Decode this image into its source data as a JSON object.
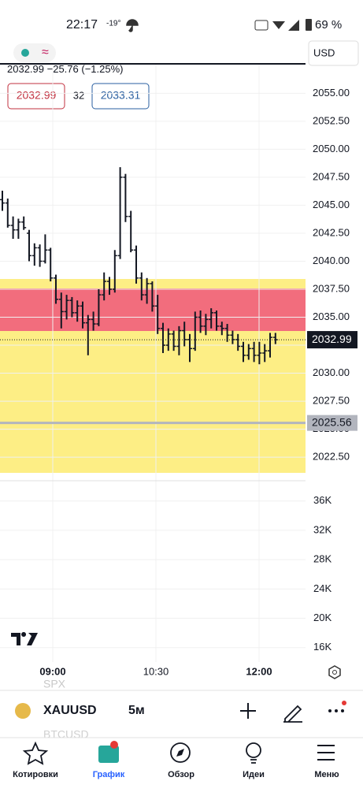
{
  "status_bar": {
    "time": "22:17",
    "temperature": "-19°",
    "battery": "69 %"
  },
  "header": {
    "currency": "USD",
    "quote": "2032.99",
    "change": "−25.76",
    "change_pct": "(−1.25%)",
    "bid": "2032.99",
    "spread": "32",
    "ask": "2033.31"
  },
  "chart_data": {
    "type": "ohlc",
    "open": [
      2045.5,
      2045.2,
      2043.2,
      2042.8,
      2043.5,
      2042.5,
      2040.5,
      2041.2,
      2040.0,
      2041.0,
      2038.5,
      2036.6,
      2035.5,
      2036.5,
      2035.4,
      2036.0,
      2034.5,
      2034.8,
      2034.4,
      2037.0,
      2038.2,
      2037.5,
      2040.5,
      2047.5,
      2044.0,
      2041.0,
      2038.5,
      2037.0,
      2038.0,
      2036.0,
      2034.0,
      2032.5,
      2033.5,
      2032.4,
      2033.8,
      2033.0,
      2032.2,
      2035.0,
      2034.2,
      2034.8,
      2035.4,
      2034.2,
      2034.0,
      2033.4,
      2033.0,
      2032.4,
      2031.6,
      2032.2,
      2031.6,
      2031.8,
      2032.0,
      2033.2
    ],
    "high": [
      2046.3,
      2045.6,
      2044.0,
      2043.8,
      2044.0,
      2042.8,
      2041.6,
      2041.5,
      2042.4,
      2041.2,
      2038.8,
      2037.2,
      2037.0,
      2036.8,
      2036.5,
      2036.4,
      2035.2,
      2035.5,
      2037.5,
      2039.0,
      2038.6,
      2041.0,
      2048.4,
      2047.8,
      2044.5,
      2041.4,
      2039.0,
      2038.5,
      2038.2,
      2037.0,
      2034.5,
      2034.0,
      2033.8,
      2034.2,
      2034.6,
      2033.5,
      2035.5,
      2035.6,
      2035.3,
      2035.8,
      2035.6,
      2034.6,
      2034.4,
      2033.8,
      2033.5,
      2032.8,
      2032.6,
      2032.8,
      2032.8,
      2032.6,
      2033.6,
      2033.6
    ],
    "low": [
      2044.5,
      2043.0,
      2042.0,
      2042.0,
      2042.8,
      2040.0,
      2039.6,
      2039.5,
      2039.8,
      2038.2,
      2036.2,
      2034.0,
      2034.8,
      2035.0,
      2034.6,
      2034.0,
      2031.6,
      2033.8,
      2034.2,
      2036.5,
      2037.0,
      2037.2,
      2040.2,
      2043.5,
      2040.8,
      2038.0,
      2036.5,
      2036.2,
      2035.5,
      2033.5,
      2031.8,
      2032.0,
      2032.0,
      2031.6,
      2032.4,
      2031.0,
      2032.0,
      2033.6,
      2033.4,
      2034.0,
      2033.8,
      2033.4,
      2032.8,
      2032.6,
      2032.0,
      2031.0,
      2031.2,
      2031.0,
      2030.8,
      2031.0,
      2031.4,
      2032.6
    ],
    "close": [
      2045.2,
      2043.2,
      2042.8,
      2043.5,
      2043.0,
      2040.5,
      2041.2,
      2040.0,
      2041.0,
      2038.5,
      2036.6,
      2035.5,
      2036.5,
      2035.4,
      2036.0,
      2034.5,
      2034.8,
      2034.4,
      2037.0,
      2038.2,
      2037.5,
      2040.5,
      2047.5,
      2044.0,
      2041.0,
      2038.5,
      2037.0,
      2038.0,
      2036.0,
      2034.0,
      2032.5,
      2033.5,
      2032.4,
      2033.8,
      2033.0,
      2032.2,
      2035.0,
      2034.2,
      2034.8,
      2035.4,
      2034.2,
      2034.0,
      2033.4,
      2033.0,
      2032.4,
      2031.6,
      2032.2,
      2031.6,
      2031.8,
      2032.0,
      2033.2,
      2032.99
    ],
    "ylim": [
      2021.1,
      2057.7
    ],
    "yticks": [
      {
        "value": 2055,
        "label": "2055.00"
      },
      {
        "value": 2052.5,
        "label": "2052.50"
      },
      {
        "value": 2050,
        "label": "2050.00"
      },
      {
        "value": 2047.5,
        "label": "2047.50"
      },
      {
        "value": 2045,
        "label": "2045.00"
      },
      {
        "value": 2042.5,
        "label": "2042.50"
      },
      {
        "value": 2040,
        "label": "2040.00"
      },
      {
        "value": 2037.5,
        "label": "2037.50"
      },
      {
        "value": 2035,
        "label": "2035.00"
      },
      {
        "value": 2032.5,
        "label": "2032.50"
      },
      {
        "value": 2030,
        "label": "2030.00"
      },
      {
        "value": 2027.5,
        "label": "2027.50"
      },
      {
        "value": 2025,
        "label": "2025.00"
      },
      {
        "value": 2022.5,
        "label": "2022.50"
      }
    ],
    "last_price": {
      "value": 2032.99,
      "label": "2032.99"
    },
    "level": {
      "value": 2025.56,
      "label": "2025.56"
    },
    "volume_lim": [
      13500,
      39300
    ],
    "volume_ticks": [
      {
        "value": 36000,
        "label": "36K"
      },
      {
        "value": 32000,
        "label": "32K"
      },
      {
        "value": 28000,
        "label": "28K"
      },
      {
        "value": 24000,
        "label": "24K"
      },
      {
        "value": 20000,
        "label": "20K"
      },
      {
        "value": 16000,
        "label": "16K"
      }
    ],
    "time_labels": [
      "09:00",
      "10:30",
      "12:00"
    ]
  },
  "symbol_bar": {
    "prev_symbol": "SPX",
    "symbol": "XAUUSD",
    "interval": "5м",
    "next_symbol": "BTCUSD"
  },
  "nav": [
    "Котировки",
    "График",
    "Обзор",
    "Идеи",
    "Меню"
  ]
}
